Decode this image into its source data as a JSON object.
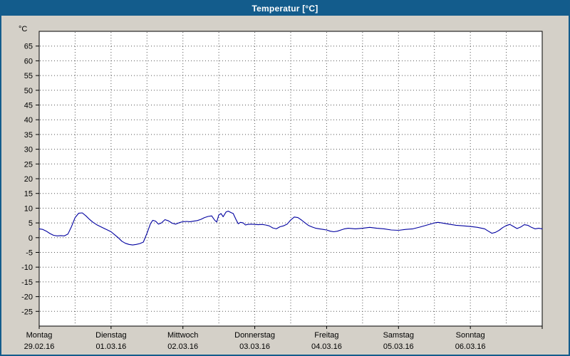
{
  "window": {
    "title": "Temperatur [°C]"
  },
  "colors": {
    "titlebar": "#135c8c",
    "window_background": "#d4d0c8",
    "plot_background": "#ffffff",
    "plot_border": "#000000",
    "grid": "#555555",
    "line": "#0000a0",
    "text": "#000000"
  },
  "chart_data": {
    "type": "line",
    "title": "Temperatur [°C]",
    "ylabel": "°C",
    "y_unit": "°C",
    "ylim": [
      -30,
      70
    ],
    "yticks": [
      65,
      60,
      55,
      50,
      45,
      40,
      35,
      30,
      25,
      20,
      15,
      10,
      5,
      0,
      -5,
      -10,
      -15,
      -20,
      -25
    ],
    "x_range": [
      0,
      7
    ],
    "grid": "dotted",
    "legend": "none",
    "x_days": [
      {
        "name": "Montag",
        "date": "29.02.16"
      },
      {
        "name": "Dienstag",
        "date": "01.03.16"
      },
      {
        "name": "Mittwoch",
        "date": "02.03.16"
      },
      {
        "name": "Donnerstag",
        "date": "03.03.16"
      },
      {
        "name": "Freitag",
        "date": "04.03.16"
      },
      {
        "name": "Samstag",
        "date": "05.03.16"
      },
      {
        "name": "Sonntag",
        "date": "06.03.16"
      }
    ],
    "series": [
      {
        "name": "Temperatur",
        "color": "#0000a0",
        "points": [
          [
            0.0,
            3.0
          ],
          [
            0.05,
            2.8
          ],
          [
            0.1,
            2.2
          ],
          [
            0.15,
            1.4
          ],
          [
            0.2,
            0.8
          ],
          [
            0.25,
            0.6
          ],
          [
            0.3,
            0.7
          ],
          [
            0.35,
            0.6
          ],
          [
            0.4,
            1.2
          ],
          [
            0.45,
            3.8
          ],
          [
            0.5,
            6.8
          ],
          [
            0.55,
            8.3
          ],
          [
            0.6,
            8.4
          ],
          [
            0.65,
            7.4
          ],
          [
            0.7,
            6.2
          ],
          [
            0.75,
            5.2
          ],
          [
            0.8,
            4.4
          ],
          [
            0.85,
            3.8
          ],
          [
            0.9,
            3.2
          ],
          [
            0.95,
            2.6
          ],
          [
            1.0,
            2.0
          ],
          [
            1.05,
            1.0
          ],
          [
            1.1,
            0.0
          ],
          [
            1.15,
            -1.2
          ],
          [
            1.2,
            -1.9
          ],
          [
            1.25,
            -2.3
          ],
          [
            1.3,
            -2.5
          ],
          [
            1.35,
            -2.3
          ],
          [
            1.4,
            -2.0
          ],
          [
            1.45,
            -1.5
          ],
          [
            1.5,
            1.5
          ],
          [
            1.55,
            4.8
          ],
          [
            1.58,
            5.9
          ],
          [
            1.62,
            5.6
          ],
          [
            1.66,
            4.6
          ],
          [
            1.7,
            5.0
          ],
          [
            1.75,
            6.1
          ],
          [
            1.8,
            5.7
          ],
          [
            1.85,
            4.9
          ],
          [
            1.9,
            4.6
          ],
          [
            1.95,
            5.1
          ],
          [
            2.0,
            5.4
          ],
          [
            2.05,
            5.5
          ],
          [
            2.1,
            5.4
          ],
          [
            2.15,
            5.6
          ],
          [
            2.2,
            5.8
          ],
          [
            2.25,
            6.2
          ],
          [
            2.3,
            6.8
          ],
          [
            2.35,
            7.2
          ],
          [
            2.4,
            7.4
          ],
          [
            2.44,
            6.0
          ],
          [
            2.47,
            5.3
          ],
          [
            2.5,
            7.7
          ],
          [
            2.53,
            8.2
          ],
          [
            2.56,
            7.1
          ],
          [
            2.6,
            8.7
          ],
          [
            2.63,
            9.0
          ],
          [
            2.67,
            8.5
          ],
          [
            2.7,
            8.2
          ],
          [
            2.74,
            6.1
          ],
          [
            2.77,
            4.7
          ],
          [
            2.8,
            5.2
          ],
          [
            2.84,
            5.0
          ],
          [
            2.87,
            4.3
          ],
          [
            2.9,
            4.5
          ],
          [
            2.95,
            4.6
          ],
          [
            3.0,
            4.5
          ],
          [
            3.05,
            4.4
          ],
          [
            3.1,
            4.5
          ],
          [
            3.15,
            4.3
          ],
          [
            3.2,
            4.0
          ],
          [
            3.25,
            3.3
          ],
          [
            3.3,
            3.0
          ],
          [
            3.35,
            3.7
          ],
          [
            3.4,
            4.0
          ],
          [
            3.45,
            4.6
          ],
          [
            3.5,
            6.0
          ],
          [
            3.55,
            7.0
          ],
          [
            3.6,
            6.8
          ],
          [
            3.65,
            6.0
          ],
          [
            3.7,
            5.0
          ],
          [
            3.75,
            4.1
          ],
          [
            3.8,
            3.6
          ],
          [
            3.85,
            3.2
          ],
          [
            3.9,
            3.0
          ],
          [
            3.95,
            2.8
          ],
          [
            4.0,
            2.6
          ],
          [
            4.05,
            2.2
          ],
          [
            4.1,
            2.0
          ],
          [
            4.15,
            2.2
          ],
          [
            4.2,
            2.6
          ],
          [
            4.25,
            3.0
          ],
          [
            4.3,
            3.2
          ],
          [
            4.4,
            3.0
          ],
          [
            4.5,
            3.2
          ],
          [
            4.6,
            3.5
          ],
          [
            4.7,
            3.2
          ],
          [
            4.8,
            3.0
          ],
          [
            4.9,
            2.6
          ],
          [
            5.0,
            2.5
          ],
          [
            5.1,
            2.8
          ],
          [
            5.2,
            3.0
          ],
          [
            5.3,
            3.6
          ],
          [
            5.4,
            4.3
          ],
          [
            5.5,
            5.0
          ],
          [
            5.55,
            5.2
          ],
          [
            5.6,
            5.0
          ],
          [
            5.7,
            4.6
          ],
          [
            5.8,
            4.2
          ],
          [
            5.9,
            4.0
          ],
          [
            6.0,
            3.8
          ],
          [
            6.1,
            3.5
          ],
          [
            6.2,
            3.0
          ],
          [
            6.25,
            2.2
          ],
          [
            6.3,
            1.5
          ],
          [
            6.35,
            1.8
          ],
          [
            6.4,
            2.5
          ],
          [
            6.45,
            3.4
          ],
          [
            6.5,
            4.1
          ],
          [
            6.55,
            4.5
          ],
          [
            6.6,
            3.8
          ],
          [
            6.65,
            3.1
          ],
          [
            6.7,
            3.6
          ],
          [
            6.75,
            4.4
          ],
          [
            6.8,
            4.2
          ],
          [
            6.85,
            3.5
          ],
          [
            6.9,
            3.0
          ],
          [
            6.95,
            3.2
          ],
          [
            7.0,
            3.0
          ]
        ]
      }
    ]
  }
}
